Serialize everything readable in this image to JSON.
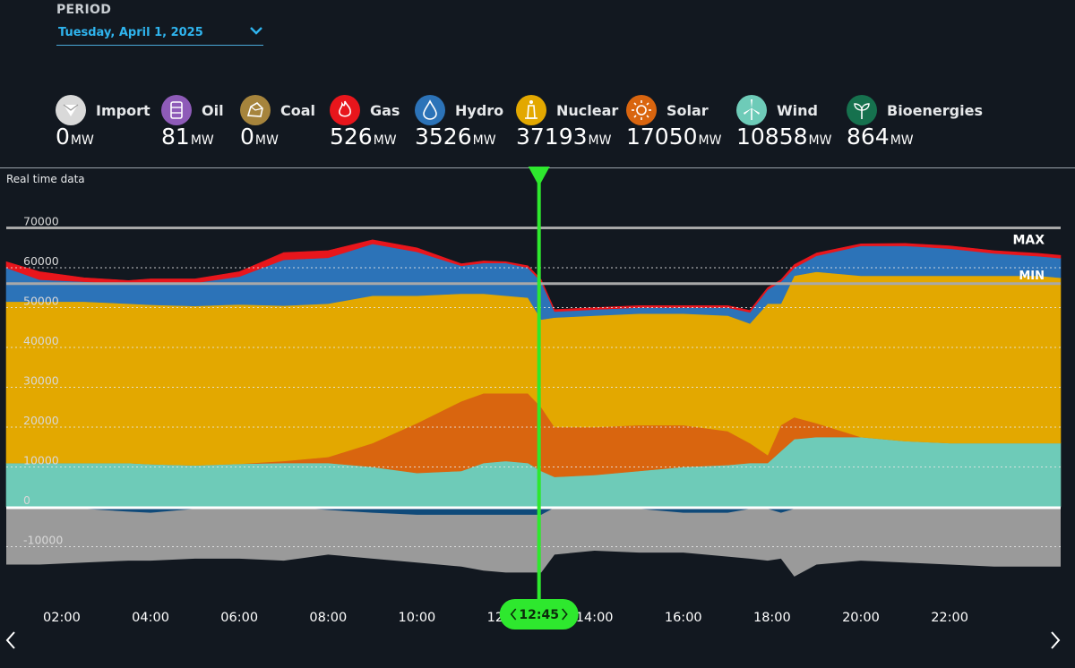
{
  "period": {
    "label": "PERIOD",
    "selected": "Tuesday, April 1, 2025"
  },
  "legend": [
    {
      "name": "Import",
      "value": "0",
      "unit": "MW",
      "color": "#d9d9d9",
      "icon": "import-icon"
    },
    {
      "name": "Oil",
      "value": "81",
      "unit": "MW",
      "color": "#8e5bb8",
      "icon": "oil-barrel-icon"
    },
    {
      "name": "Coal",
      "value": "0",
      "unit": "MW",
      "color": "#a6843c",
      "icon": "coal-icon"
    },
    {
      "name": "Gas",
      "value": "526",
      "unit": "MW",
      "color": "#e8161c",
      "icon": "gas-flame-icon"
    },
    {
      "name": "Hydro",
      "value": "3526",
      "unit": "MW",
      "color": "#2c73b8",
      "icon": "hydro-drop-icon"
    },
    {
      "name": "Nuclear",
      "value": "37193",
      "unit": "MW",
      "color": "#e3a800",
      "icon": "nuclear-icon"
    },
    {
      "name": "Solar",
      "value": "17050",
      "unit": "MW",
      "color": "#d9650f",
      "icon": "solar-sun-icon"
    },
    {
      "name": "Wind",
      "value": "10858",
      "unit": "MW",
      "color": "#6ecbb8",
      "icon": "wind-turbine-icon"
    },
    {
      "name": "Bioenergies",
      "value": "864",
      "unit": "MW",
      "color": "#16714e",
      "icon": "bioenergy-leaf-icon"
    }
  ],
  "realtime_label": "Real time data",
  "markers": {
    "max_label": "MAX",
    "min_label": "MIN"
  },
  "cursor": {
    "time": "12:45"
  },
  "colors": {
    "background": "#121820",
    "cursor": "#2ee82e",
    "export": "#9a9a9a",
    "pumping": "#0f4a7a",
    "maxmin_line": "#a8a8a8"
  },
  "chart_data": {
    "type": "area",
    "stacked": true,
    "x_unit": "hours",
    "xlim": [
      0.75,
      24.5
    ],
    "ylim": [
      -17000,
      72000
    ],
    "y_ticks": [
      70000,
      60000,
      50000,
      40000,
      30000,
      20000,
      10000,
      0,
      -10000
    ],
    "y_tick_labels": [
      "70000",
      "60000",
      "50000",
      "40000",
      "30000",
      "20000",
      "10000",
      "0",
      "-10000"
    ],
    "x_ticks": [
      2,
      4,
      6,
      8,
      10,
      12,
      14,
      16,
      18,
      20,
      22
    ],
    "x_tick_labels": [
      "02:00",
      "04:00",
      "06:00",
      "08:00",
      "10:00",
      "12:00",
      "14:00",
      "16:00",
      "18:00",
      "20:00",
      "22:00"
    ],
    "max_value": 70000,
    "min_value": 56000,
    "grid": "dotted horizontal",
    "x": [
      0.75,
      1.5,
      2.5,
      3.5,
      4.0,
      5.0,
      6.0,
      7.0,
      8.0,
      9.0,
      10.0,
      11.0,
      11.5,
      12.0,
      12.5,
      12.8,
      13.1,
      14.0,
      15.0,
      16.0,
      17.0,
      17.5,
      17.9,
      18.2,
      18.5,
      19.0,
      20.0,
      21.0,
      22.0,
      23.0,
      24.0,
      24.5
    ],
    "series": [
      {
        "name": "Wind",
        "color": "#6ecbb8",
        "values": [
          11000,
          11000,
          11000,
          11000,
          10700,
          10400,
          10800,
          11000,
          11000,
          10000,
          8500,
          9000,
          11000,
          11500,
          11000,
          9000,
          7500,
          8000,
          9000,
          10000,
          10500,
          11000,
          11000,
          14000,
          17000,
          17500,
          17500,
          16500,
          16000,
          16000,
          16000,
          16000
        ]
      },
      {
        "name": "Solar",
        "color": "#d9650f",
        "values": [
          0,
          0,
          0,
          0,
          0,
          0,
          0,
          500,
          1500,
          6000,
          12500,
          17500,
          17500,
          17000,
          17500,
          16000,
          12500,
          12000,
          11500,
          10500,
          8500,
          5000,
          2000,
          6500,
          5500,
          3500,
          0,
          0,
          0,
          0,
          0,
          0
        ]
      },
      {
        "name": "Nuclear",
        "color": "#e3a800",
        "values": [
          40500,
          40500,
          40500,
          40000,
          40000,
          40000,
          40000,
          39000,
          38500,
          37000,
          32000,
          27000,
          25000,
          24500,
          24000,
          22000,
          27500,
          28000,
          28000,
          28000,
          29000,
          30000,
          38000,
          30500,
          35500,
          38000,
          40500,
          41500,
          42000,
          42000,
          42000,
          41500
        ]
      },
      {
        "name": "Hydro",
        "color": "#2c73b8",
        "values": [
          8500,
          5500,
          5000,
          5000,
          5500,
          5800,
          7000,
          11500,
          11500,
          13000,
          11000,
          7000,
          7700,
          8200,
          7500,
          9500,
          1500,
          1500,
          1500,
          1500,
          2000,
          2800,
          3500,
          5500,
          2000,
          4000,
          7500,
          7500,
          6800,
          5600,
          4900,
          4900
        ]
      },
      {
        "name": "Gas",
        "color": "#e8161c",
        "values": [
          1500,
          2000,
          1000,
          800,
          1000,
          1000,
          1200,
          1800,
          1800,
          1000,
          1000,
          500,
          500,
          300,
          500,
          500,
          500,
          500,
          500,
          500,
          500,
          500,
          500,
          500,
          800,
          700,
          500,
          600,
          700,
          700,
          700,
          700
        ]
      },
      {
        "name": "Export",
        "color": "#9a9a9a",
        "values": [
          -14500,
          -14500,
          -14000,
          -13500,
          -13500,
          -13000,
          -13000,
          -13500,
          -12000,
          -13000,
          -14000,
          -15000,
          -16000,
          -16500,
          -16500,
          -16500,
          -12000,
          -11000,
          -11500,
          -11500,
          -12500,
          -13000,
          -13500,
          -13000,
          -17500,
          -14500,
          -13500,
          -14000,
          -14500,
          -15000,
          -15000,
          -15000
        ]
      },
      {
        "name": "Pumping",
        "color": "#0f4a7a",
        "values": [
          0,
          0,
          -500,
          -1200,
          -1500,
          -500,
          0,
          0,
          -800,
          -1500,
          -2000,
          -2000,
          -2000,
          -2000,
          -2000,
          -2000,
          -200,
          0,
          -500,
          -1500,
          -1500,
          -500,
          -500,
          -1500,
          -500,
          -300,
          0,
          0,
          0,
          0,
          0,
          0
        ]
      }
    ]
  }
}
